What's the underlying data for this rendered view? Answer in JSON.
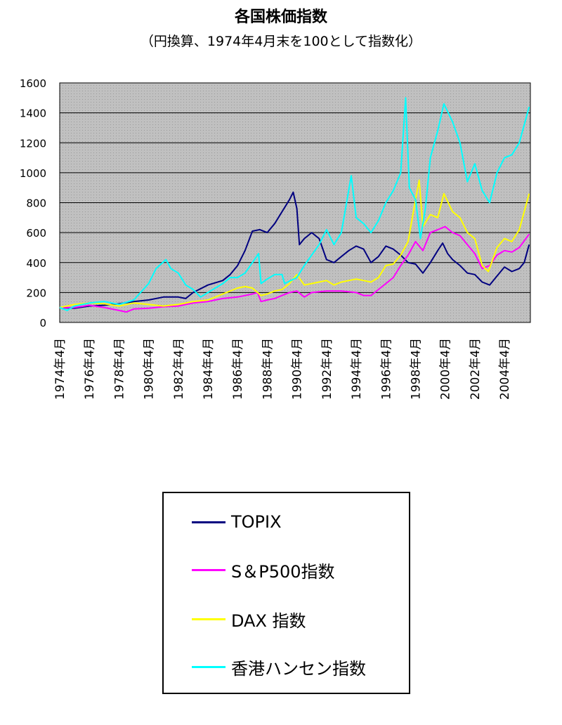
{
  "chart_data": {
    "type": "line",
    "title": "各国株価指数",
    "subtitle": "（円換算、1974年4月末を100として指数化）",
    "ylim": [
      0,
      1600
    ],
    "y_ticks": [
      0,
      200,
      400,
      600,
      800,
      1000,
      1200,
      1400,
      1600
    ],
    "x_range": [
      "1974-04",
      "2006-01"
    ],
    "x_tick_labels": [
      "1974年4月",
      "1976年4月",
      "1978年4月",
      "1980年4月",
      "1982年4月",
      "1984年4月",
      "1986年4月",
      "1988年4月",
      "1990年4月",
      "1992年4月",
      "1994年4月",
      "1996年4月",
      "1998年4月",
      "2000年4月",
      "2002年4月",
      "2004年4月"
    ],
    "grid": "horizontal",
    "plot_background": "#c0c0c0",
    "legend_position": "bottom",
    "series": [
      {
        "name": "TOPIX",
        "color": "#000080",
        "points": [
          [
            "1974-04",
            100
          ],
          [
            "1975-04",
            95
          ],
          [
            "1976-04",
            110
          ],
          [
            "1977-04",
            115
          ],
          [
            "1978-04",
            125
          ],
          [
            "1979-04",
            140
          ],
          [
            "1980-04",
            150
          ],
          [
            "1981-04",
            170
          ],
          [
            "1982-04",
            170
          ],
          [
            "1982-10",
            160
          ],
          [
            "1983-04",
            200
          ],
          [
            "1984-04",
            250
          ],
          [
            "1985-04",
            280
          ],
          [
            "1985-10",
            320
          ],
          [
            "1986-04",
            380
          ],
          [
            "1986-10",
            480
          ],
          [
            "1987-04",
            610
          ],
          [
            "1987-10",
            620
          ],
          [
            "1988-04",
            600
          ],
          [
            "1988-10",
            660
          ],
          [
            "1989-04",
            740
          ],
          [
            "1989-10",
            820
          ],
          [
            "1990-01",
            870
          ],
          [
            "1990-04",
            760
          ],
          [
            "1990-06",
            520
          ],
          [
            "1990-10",
            560
          ],
          [
            "1991-04",
            600
          ],
          [
            "1991-10",
            560
          ],
          [
            "1992-04",
            420
          ],
          [
            "1992-10",
            400
          ],
          [
            "1993-04",
            440
          ],
          [
            "1993-10",
            480
          ],
          [
            "1994-04",
            510
          ],
          [
            "1994-10",
            490
          ],
          [
            "1995-04",
            400
          ],
          [
            "1995-10",
            440
          ],
          [
            "1996-04",
            510
          ],
          [
            "1996-10",
            490
          ],
          [
            "1997-04",
            450
          ],
          [
            "1997-10",
            400
          ],
          [
            "1998-04",
            390
          ],
          [
            "1998-10",
            330
          ],
          [
            "1999-04",
            400
          ],
          [
            "1999-10",
            480
          ],
          [
            "2000-02",
            530
          ],
          [
            "2000-06",
            460
          ],
          [
            "2000-10",
            420
          ],
          [
            "2001-04",
            380
          ],
          [
            "2001-10",
            330
          ],
          [
            "2002-04",
            320
          ],
          [
            "2002-10",
            270
          ],
          [
            "2003-04",
            250
          ],
          [
            "2003-10",
            310
          ],
          [
            "2004-04",
            370
          ],
          [
            "2004-10",
            340
          ],
          [
            "2005-04",
            360
          ],
          [
            "2005-08",
            400
          ],
          [
            "2005-12",
            520
          ]
        ]
      },
      {
        "name": "S＆P500指数",
        "color": "#ff00ff",
        "points": [
          [
            "1974-04",
            100
          ],
          [
            "1975-04",
            100
          ],
          [
            "1976-04",
            115
          ],
          [
            "1977-04",
            100
          ],
          [
            "1978-04",
            80
          ],
          [
            "1978-10",
            70
          ],
          [
            "1979-04",
            90
          ],
          [
            "1980-04",
            95
          ],
          [
            "1981-04",
            105
          ],
          [
            "1982-04",
            110
          ],
          [
            "1983-04",
            130
          ],
          [
            "1984-04",
            140
          ],
          [
            "1985-04",
            160
          ],
          [
            "1986-04",
            170
          ],
          [
            "1987-04",
            190
          ],
          [
            "1987-08",
            200
          ],
          [
            "1987-11",
            140
          ],
          [
            "1988-04",
            150
          ],
          [
            "1988-10",
            160
          ],
          [
            "1989-04",
            180
          ],
          [
            "1989-10",
            200
          ],
          [
            "1990-04",
            210
          ],
          [
            "1990-10",
            170
          ],
          [
            "1991-04",
            200
          ],
          [
            "1992-04",
            210
          ],
          [
            "1993-04",
            210
          ],
          [
            "1994-04",
            200
          ],
          [
            "1994-10",
            180
          ],
          [
            "1995-04",
            180
          ],
          [
            "1995-07",
            200
          ],
          [
            "1996-04",
            260
          ],
          [
            "1996-10",
            300
          ],
          [
            "1997-04",
            380
          ],
          [
            "1997-10",
            450
          ],
          [
            "1998-04",
            540
          ],
          [
            "1998-10",
            480
          ],
          [
            "1999-04",
            600
          ],
          [
            "1999-10",
            620
          ],
          [
            "2000-04",
            640
          ],
          [
            "2000-10",
            600
          ],
          [
            "2001-04",
            580
          ],
          [
            "2001-10",
            520
          ],
          [
            "2002-04",
            460
          ],
          [
            "2002-10",
            360
          ],
          [
            "2003-04",
            380
          ],
          [
            "2003-10",
            450
          ],
          [
            "2004-04",
            480
          ],
          [
            "2004-10",
            470
          ],
          [
            "2005-04",
            500
          ],
          [
            "2005-12",
            590
          ]
        ]
      },
      {
        "name": "DAX 指数",
        "color": "#ffff00",
        "points": [
          [
            "1974-04",
            100
          ],
          [
            "1975-04",
            120
          ],
          [
            "1976-04",
            130
          ],
          [
            "1977-04",
            125
          ],
          [
            "1978-04",
            110
          ],
          [
            "1979-04",
            130
          ],
          [
            "1980-04",
            120
          ],
          [
            "1981-04",
            110
          ],
          [
            "1982-04",
            120
          ],
          [
            "1983-04",
            140
          ],
          [
            "1984-04",
            150
          ],
          [
            "1985-04",
            190
          ],
          [
            "1986-04",
            230
          ],
          [
            "1986-10",
            240
          ],
          [
            "1987-04",
            230
          ],
          [
            "1987-11",
            180
          ],
          [
            "1988-04",
            190
          ],
          [
            "1988-10",
            210
          ],
          [
            "1989-04",
            220
          ],
          [
            "1989-10",
            260
          ],
          [
            "1990-04",
            320
          ],
          [
            "1990-10",
            250
          ],
          [
            "1991-04",
            260
          ],
          [
            "1992-04",
            280
          ],
          [
            "1992-10",
            250
          ],
          [
            "1993-04",
            270
          ],
          [
            "1994-04",
            290
          ],
          [
            "1994-10",
            280
          ],
          [
            "1995-04",
            270
          ],
          [
            "1995-10",
            300
          ],
          [
            "1996-04",
            380
          ],
          [
            "1996-10",
            390
          ],
          [
            "1997-04",
            450
          ],
          [
            "1997-10",
            540
          ],
          [
            "1998-04",
            820
          ],
          [
            "1998-07",
            950
          ],
          [
            "1998-10",
            640
          ],
          [
            "1999-04",
            720
          ],
          [
            "1999-10",
            700
          ],
          [
            "2000-03",
            860
          ],
          [
            "2000-10",
            740
          ],
          [
            "2001-04",
            700
          ],
          [
            "2001-10",
            600
          ],
          [
            "2002-04",
            560
          ],
          [
            "2002-10",
            380
          ],
          [
            "2003-03",
            340
          ],
          [
            "2003-10",
            500
          ],
          [
            "2004-04",
            560
          ],
          [
            "2004-10",
            540
          ],
          [
            "2005-04",
            620
          ],
          [
            "2005-12",
            860
          ]
        ]
      },
      {
        "name": "香港ハンセン指数",
        "color": "#00ffff",
        "points": [
          [
            "1974-04",
            100
          ],
          [
            "1974-10",
            80
          ],
          [
            "1975-04",
            110
          ],
          [
            "1976-04",
            130
          ],
          [
            "1977-04",
            140
          ],
          [
            "1978-04",
            120
          ],
          [
            "1979-04",
            150
          ],
          [
            "1980-04",
            260
          ],
          [
            "1980-10",
            360
          ],
          [
            "1981-06",
            420
          ],
          [
            "1981-10",
            360
          ],
          [
            "1982-04",
            330
          ],
          [
            "1982-10",
            250
          ],
          [
            "1983-04",
            220
          ],
          [
            "1983-10",
            170
          ],
          [
            "1984-04",
            200
          ],
          [
            "1984-10",
            230
          ],
          [
            "1985-04",
            260
          ],
          [
            "1985-10",
            300
          ],
          [
            "1986-04",
            300
          ],
          [
            "1986-10",
            330
          ],
          [
            "1987-04",
            400
          ],
          [
            "1987-09",
            460
          ],
          [
            "1987-11",
            260
          ],
          [
            "1988-04",
            290
          ],
          [
            "1988-10",
            320
          ],
          [
            "1989-04",
            320
          ],
          [
            "1989-06",
            260
          ],
          [
            "1990-04",
            300
          ],
          [
            "1990-10",
            380
          ],
          [
            "1991-04",
            450
          ],
          [
            "1991-10",
            520
          ],
          [
            "1992-04",
            620
          ],
          [
            "1992-10",
            520
          ],
          [
            "1993-04",
            600
          ],
          [
            "1993-12",
            980
          ],
          [
            "1994-04",
            700
          ],
          [
            "1994-10",
            660
          ],
          [
            "1995-04",
            600
          ],
          [
            "1995-10",
            680
          ],
          [
            "1996-04",
            800
          ],
          [
            "1996-10",
            880
          ],
          [
            "1997-04",
            1000
          ],
          [
            "1997-08",
            1500
          ],
          [
            "1997-11",
            900
          ],
          [
            "1998-04",
            820
          ],
          [
            "1998-08",
            560
          ],
          [
            "1998-12",
            760
          ],
          [
            "1999-04",
            1100
          ],
          [
            "1999-10",
            1280
          ],
          [
            "2000-03",
            1460
          ],
          [
            "2000-10",
            1340
          ],
          [
            "2001-04",
            1200
          ],
          [
            "2001-10",
            940
          ],
          [
            "2002-04",
            1060
          ],
          [
            "2002-10",
            880
          ],
          [
            "2003-04",
            800
          ],
          [
            "2003-10",
            1000
          ],
          [
            "2004-04",
            1100
          ],
          [
            "2004-10",
            1120
          ],
          [
            "2005-04",
            1200
          ],
          [
            "2005-12",
            1440
          ]
        ]
      }
    ]
  }
}
